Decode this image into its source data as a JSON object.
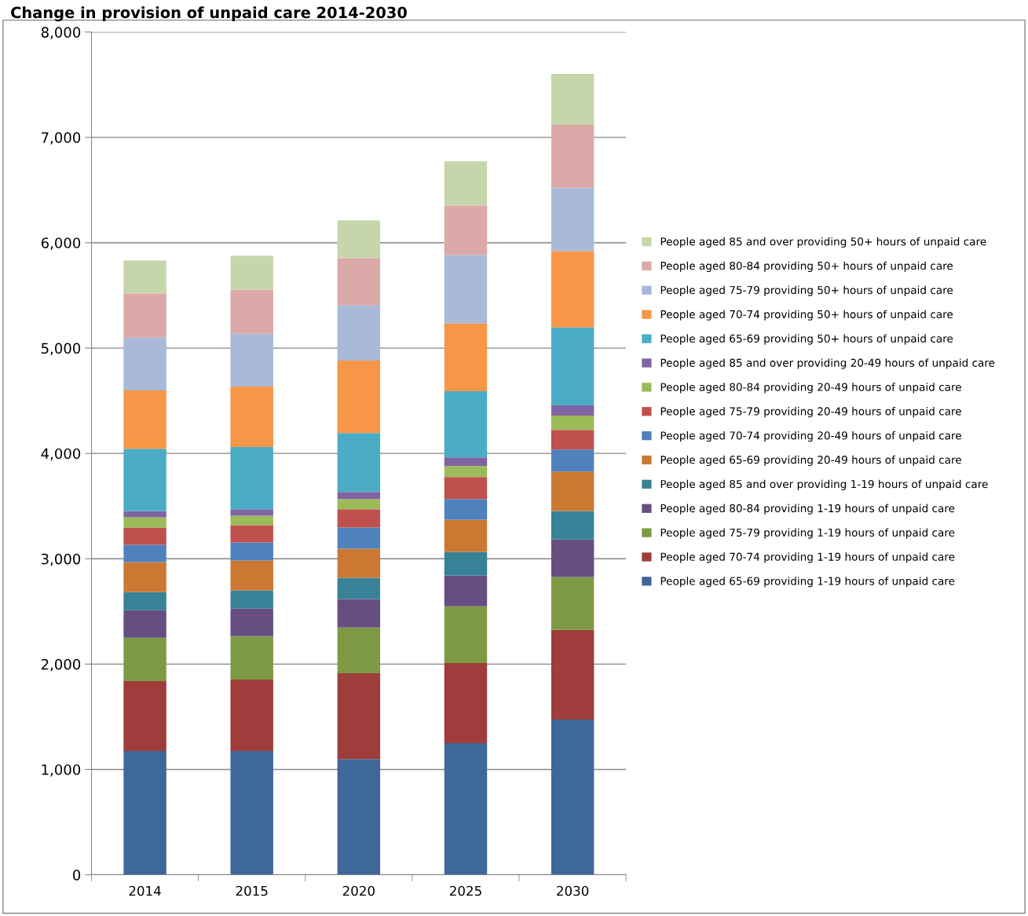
{
  "chart_data": {
    "type": "bar",
    "stacked": true,
    "title": "Change in provision of unpaid care 2014-2030",
    "categories": [
      "2014",
      "2015",
      "2020",
      "2025",
      "2030"
    ],
    "ylim": [
      0,
      8000
    ],
    "yticks": [
      {
        "value": 0,
        "label": "0"
      },
      {
        "value": 1000,
        "label": "1,000"
      },
      {
        "value": 2000,
        "label": "2,000"
      },
      {
        "value": 3000,
        "label": "3,000"
      },
      {
        "value": 4000,
        "label": "4,000"
      },
      {
        "value": 5000,
        "label": "5,000"
      },
      {
        "value": 6000,
        "label": "6,000"
      },
      {
        "value": 7000,
        "label": "7,000"
      },
      {
        "value": 8000,
        "label": "8,000"
      }
    ],
    "grid": "y",
    "legend": "right",
    "series": [
      {
        "name": "People aged 65-69 providing 1-19 hours of unpaid care",
        "color": "#3f689a",
        "values": [
          1174,
          1174,
          1099,
          1249,
          1473
        ]
      },
      {
        "name": "People aged 70-74 providing 1-19 hours of unpaid care",
        "color": "#9e3d3b",
        "values": [
          665,
          680,
          815,
          762,
          852
        ]
      },
      {
        "name": "People aged 75-79 providing 1-19 hours of unpaid care",
        "color": "#7e9a44",
        "values": [
          411,
          411,
          434,
          538,
          501
        ]
      },
      {
        "name": "People aged 80-84 providing 1-19 hours of unpaid care",
        "color": "#664e83",
        "values": [
          262,
          262,
          269,
          292,
          359
        ]
      },
      {
        "name": "People aged 85 and over providing 1-19 hours of unpaid care",
        "color": "#378297",
        "values": [
          172,
          172,
          202,
          224,
          269
        ]
      },
      {
        "name": "People aged 65-69 providing 20-49 hours of unpaid care",
        "color": "#cb7833",
        "values": [
          284,
          284,
          276,
          307,
          374
        ]
      },
      {
        "name": "People aged 70-74 providing 20-49 hours of unpaid care",
        "color": "#4f81bd",
        "values": [
          165,
          172,
          202,
          194,
          209
        ]
      },
      {
        "name": "People aged 75-79 providing 20-49 hours of unpaid care",
        "color": "#c0504d",
        "values": [
          164,
          164,
          172,
          210,
          187
        ]
      },
      {
        "name": "People aged 80-84 providing 20-49 hours of unpaid care",
        "color": "#9bbb59",
        "values": [
          97,
          90,
          97,
          104,
          135
        ]
      },
      {
        "name": "People aged 85 and over providing 20-49 hours of unpaid care",
        "color": "#8064a2",
        "values": [
          60,
          60,
          68,
          83,
          97
        ]
      },
      {
        "name": "People aged 65-69 providing 50+ hours of unpaid care",
        "color": "#4bacc6",
        "values": [
          591,
          591,
          560,
          628,
          740
        ]
      },
      {
        "name": "People aged 70-74 providing 50+ hours of unpaid care",
        "color": "#f79646",
        "values": [
          553,
          576,
          688,
          643,
          725
        ]
      },
      {
        "name": "People aged 75-79 providing 50+ hours of unpaid care",
        "color": "#a9b9d8",
        "values": [
          501,
          501,
          524,
          650,
          599
        ]
      },
      {
        "name": "People aged 80-84 providing 50+ hours of unpaid care",
        "color": "#daa9a8",
        "values": [
          419,
          418,
          448,
          471,
          598
        ]
      },
      {
        "name": "People aged 85 and over providing 50+ hours of unpaid care",
        "color": "#c7d6aa",
        "values": [
          314,
          322,
          359,
          419,
          486
        ]
      }
    ]
  }
}
